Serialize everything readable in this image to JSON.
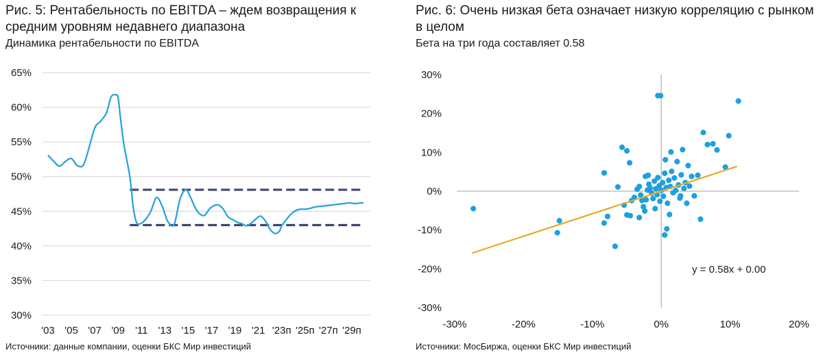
{
  "left_panel": {
    "title": "Рис. 5: Рентабельность по EBITDA – ждем возвращения к средним уровням недавнего диапазона",
    "subtitle": "Динамика рентабельности по EBITDA",
    "source": "Источники: данные компании, оценки БКС Мир инвестиций"
  },
  "right_panel": {
    "title": "Рис. 6: Очень низкая бета означает низкую корреляцию с рынком в целом",
    "subtitle": "Бета на три года составляет 0.58",
    "source": "Источники: МосБиржа, оценки БКС Мир инвестиций"
  },
  "chart_data": [
    {
      "type": "line",
      "title": "Рис. 5: Рентабельность по EBITDA – ждем возвращения к средним уровням недавнего диапазона",
      "subtitle": "Динамика рентабельности по EBITDA",
      "ylim": [
        30,
        65
      ],
      "yticks": [
        "30%",
        "35%",
        "40%",
        "45%",
        "50%",
        "55%",
        "60%",
        "65%"
      ],
      "xlim": [
        2003,
        2030
      ],
      "xticks": [
        "'03",
        "'05",
        "'07",
        "'09",
        "'11",
        "'13",
        "'15",
        "'17",
        "'19",
        "'21",
        "'23п",
        "'25п",
        "'27п",
        "'29п"
      ],
      "grid": "horizontal",
      "line_color": "#29a3dc",
      "band_color": "#3b4670",
      "series": [
        {
          "x": [
            2003,
            2003.6,
            2004,
            2004.5,
            2005,
            2005.5,
            2006,
            2006.4,
            2007,
            2007.5,
            2008,
            2008.4,
            2008.8,
            2009,
            2009.2,
            2009.5,
            2010,
            2010.3,
            2010.6,
            2011,
            2011.4,
            2011.8,
            2012.3,
            2012.8,
            2013,
            2013.3,
            2013.8,
            2014.3,
            2014.8,
            2015.2,
            2015.6,
            2016,
            2016.4,
            2016.8,
            2017.2,
            2017.6,
            2018,
            2018.4,
            2018.8,
            2019.2,
            2019.6,
            2020,
            2020.4,
            2020.8,
            2021.2,
            2021.6,
            2022,
            2022.4,
            2022.8,
            2023,
            2023.4,
            2023.8,
            2024.2,
            2024.6,
            2025,
            2025.4,
            2025.8,
            2026.3,
            2026.8,
            2027.3,
            2027.8,
            2028.3,
            2028.8,
            2029.3,
            2029.8,
            2030
          ],
          "y": [
            53.1,
            52.0,
            51.5,
            52.2,
            52.6,
            51.6,
            51.6,
            53.5,
            57.0,
            58.0,
            59.2,
            61.5,
            61.8,
            61.4,
            58.5,
            54.6,
            50.0,
            45.5,
            43.3,
            43.3,
            43.9,
            45.0,
            47.0,
            45.6,
            44.6,
            43.4,
            43.1,
            46.8,
            48.1,
            47.0,
            45.5,
            44.6,
            44.4,
            45.3,
            45.8,
            45.9,
            45.3,
            44.2,
            43.8,
            43.4,
            43.2,
            42.9,
            43.3,
            43.9,
            44.3,
            43.6,
            42.4,
            41.8,
            42.1,
            42.9,
            43.8,
            44.6,
            45.1,
            45.3,
            45.3,
            45.4,
            45.6,
            45.7,
            45.8,
            45.9,
            46.0,
            46.1,
            46.2,
            46.1,
            46.2,
            46.2
          ]
        }
      ],
      "bands": [
        {
          "y": 48.1,
          "x_range": [
            2010,
            2030
          ]
        },
        {
          "y": 43.0,
          "x_range": [
            2010,
            2030
          ]
        }
      ]
    },
    {
      "type": "scatter",
      "title": "Рис. 6: Очень низкая бета означает низкую корреляцию с рынком в целом",
      "subtitle": "Бета на три года составляет 0.58",
      "xlim": [
        -30,
        20
      ],
      "ylim": [
        -30,
        30
      ],
      "xticks": [
        "-30%",
        "-20%",
        "-10%",
        "0%",
        "10%",
        "20%"
      ],
      "yticks": [
        "-30%",
        "-20%",
        "-10%",
        "0%",
        "10%",
        "20%",
        "30%"
      ],
      "point_color": "#1ea0df",
      "trendline": {
        "slope": 0.58,
        "intercept": 0.0,
        "x_range": [
          -27.5,
          11
        ],
        "color": "#e8a82a"
      },
      "annotation": "y = 0.58x + 0.00",
      "points": [
        [
          -27.3,
          -4.5
        ],
        [
          -14.8,
          -7.6
        ],
        [
          -15.1,
          -10.7
        ],
        [
          -8.3,
          4.7
        ],
        [
          -8.3,
          -8.2
        ],
        [
          -7.8,
          -6.5
        ],
        [
          -6.7,
          -14.2
        ],
        [
          -5.7,
          11.3
        ],
        [
          -5.0,
          10.4
        ],
        [
          -4.6,
          7.3
        ],
        [
          -6.3,
          1.1
        ],
        [
          -5.4,
          -3.6
        ],
        [
          -5.0,
          -6.1
        ],
        [
          -4.5,
          -6.3
        ],
        [
          -4.3,
          -2.4
        ],
        [
          -3.9,
          -1.6
        ],
        [
          -3.5,
          0.5
        ],
        [
          -3.2,
          1.2
        ],
        [
          -3.0,
          -1.0
        ],
        [
          -2.8,
          -2.4
        ],
        [
          -2.6,
          -4.0
        ],
        [
          -2.4,
          -5.1
        ],
        [
          -2.2,
          -2.2
        ],
        [
          -2.0,
          0.3
        ],
        [
          -1.8,
          1.8
        ],
        [
          -1.6,
          0.8
        ],
        [
          -1.4,
          -0.5
        ],
        [
          -1.2,
          -1.9
        ],
        [
          -1.0,
          2.6
        ],
        [
          -0.8,
          0.6
        ],
        [
          -0.6,
          -0.9
        ],
        [
          -0.5,
          3.5
        ],
        [
          -0.3,
          1.4
        ],
        [
          -0.2,
          -2.6
        ],
        [
          0.0,
          0.2
        ],
        [
          0.2,
          2.2
        ],
        [
          0.3,
          -1.3
        ],
        [
          0.5,
          4.6
        ],
        [
          0.7,
          0.9
        ],
        [
          0.9,
          -3.1
        ],
        [
          1.1,
          2.8
        ],
        [
          1.3,
          1.2
        ],
        [
          1.5,
          5.1
        ],
        [
          1.7,
          -0.4
        ],
        [
          1.9,
          3.4
        ],
        [
          2.1,
          0.2
        ],
        [
          2.3,
          7.6
        ],
        [
          2.5,
          1.6
        ],
        [
          2.7,
          -1.8
        ],
        [
          2.9,
          4.2
        ],
        [
          3.1,
          10.7
        ],
        [
          3.3,
          0.7
        ],
        [
          3.5,
          2.2
        ],
        [
          3.7,
          -3.1
        ],
        [
          3.9,
          6.6
        ],
        [
          4.1,
          1.3
        ],
        [
          4.4,
          3.8
        ],
        [
          4.8,
          -1.2
        ],
        [
          5.3,
          4.1
        ],
        [
          5.7,
          -7.2
        ],
        [
          6.1,
          15.1
        ],
        [
          6.7,
          12.0
        ],
        [
          7.5,
          12.2
        ],
        [
          8.1,
          10.6
        ],
        [
          9.3,
          6.2
        ],
        [
          9.8,
          14.3
        ],
        [
          11.2,
          23.2
        ],
        [
          -0.5,
          24.6
        ],
        [
          -0.1,
          24.6
        ],
        [
          0.8,
          -9.7
        ],
        [
          0.5,
          -11.3
        ],
        [
          1.4,
          10.1
        ],
        [
          0.6,
          8.1
        ],
        [
          -2.3,
          3.8
        ],
        [
          -1.9,
          4.1
        ],
        [
          -3.2,
          -6.8
        ],
        [
          1.2,
          -6.0
        ],
        [
          -0.9,
          -4.5
        ],
        [
          2.8,
          -1.2
        ]
      ]
    }
  ]
}
